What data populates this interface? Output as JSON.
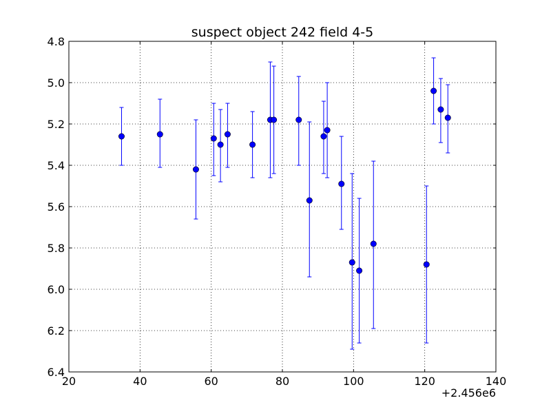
{
  "colors": {
    "marker": "#0000ff",
    "errorbar": "#0000ff",
    "grid": "#000000",
    "axes": "#000000",
    "background": "#ffffff"
  },
  "chart_data": {
    "type": "scatter",
    "title": "suspect object 242 field 4-5",
    "xlabel": "",
    "ylabel": "",
    "x_offset_label": "+2.456e6",
    "xlim": [
      20,
      140
    ],
    "ylim": [
      6.4,
      4.8
    ],
    "y_inverted": true,
    "grid": true,
    "legend": "none",
    "x_ticks": [
      "20",
      "40",
      "60",
      "80",
      "100",
      "120",
      "140"
    ],
    "y_ticks": [
      "4.8",
      "5.0",
      "5.2",
      "5.4",
      "5.6",
      "5.8",
      "6.0",
      "6.2",
      "6.4"
    ],
    "series": [
      {
        "marker": "circle",
        "errorbars": "vertical",
        "points": [
          {
            "x": 34.8,
            "y": 5.26,
            "err_low": 5.12,
            "err_high": 5.4
          },
          {
            "x": 45.6,
            "y": 5.25,
            "err_low": 5.08,
            "err_high": 5.41
          },
          {
            "x": 55.7,
            "y": 5.42,
            "err_low": 5.18,
            "err_high": 5.66
          },
          {
            "x": 60.7,
            "y": 5.27,
            "err_low": 5.1,
            "err_high": 5.45
          },
          {
            "x": 62.6,
            "y": 5.3,
            "err_low": 5.13,
            "err_high": 5.48
          },
          {
            "x": 64.6,
            "y": 5.25,
            "err_low": 5.1,
            "err_high": 5.41
          },
          {
            "x": 71.6,
            "y": 5.3,
            "err_low": 5.14,
            "err_high": 5.46
          },
          {
            "x": 76.6,
            "y": 5.18,
            "err_low": 4.9,
            "err_high": 5.46
          },
          {
            "x": 77.6,
            "y": 5.18,
            "err_low": 4.92,
            "err_high": 5.44
          },
          {
            "x": 84.6,
            "y": 5.18,
            "err_low": 4.97,
            "err_high": 5.4
          },
          {
            "x": 87.6,
            "y": 5.57,
            "err_low": 5.19,
            "err_high": 5.94
          },
          {
            "x": 91.6,
            "y": 5.26,
            "err_low": 5.09,
            "err_high": 5.44
          },
          {
            "x": 92.6,
            "y": 5.23,
            "err_low": 5.0,
            "err_high": 5.46
          },
          {
            "x": 96.6,
            "y": 5.49,
            "err_low": 5.26,
            "err_high": 5.71
          },
          {
            "x": 99.6,
            "y": 5.87,
            "err_low": 5.44,
            "err_high": 6.29
          },
          {
            "x": 101.6,
            "y": 5.91,
            "err_low": 5.56,
            "err_high": 6.26
          },
          {
            "x": 105.6,
            "y": 5.78,
            "err_low": 5.38,
            "err_high": 6.19
          },
          {
            "x": 120.5,
            "y": 5.88,
            "err_low": 5.5,
            "err_high": 6.26
          },
          {
            "x": 122.5,
            "y": 5.04,
            "err_low": 4.88,
            "err_high": 5.2
          },
          {
            "x": 124.5,
            "y": 5.13,
            "err_low": 4.98,
            "err_high": 5.29
          },
          {
            "x": 126.5,
            "y": 5.17,
            "err_low": 5.01,
            "err_high": 5.34
          }
        ]
      }
    ]
  }
}
